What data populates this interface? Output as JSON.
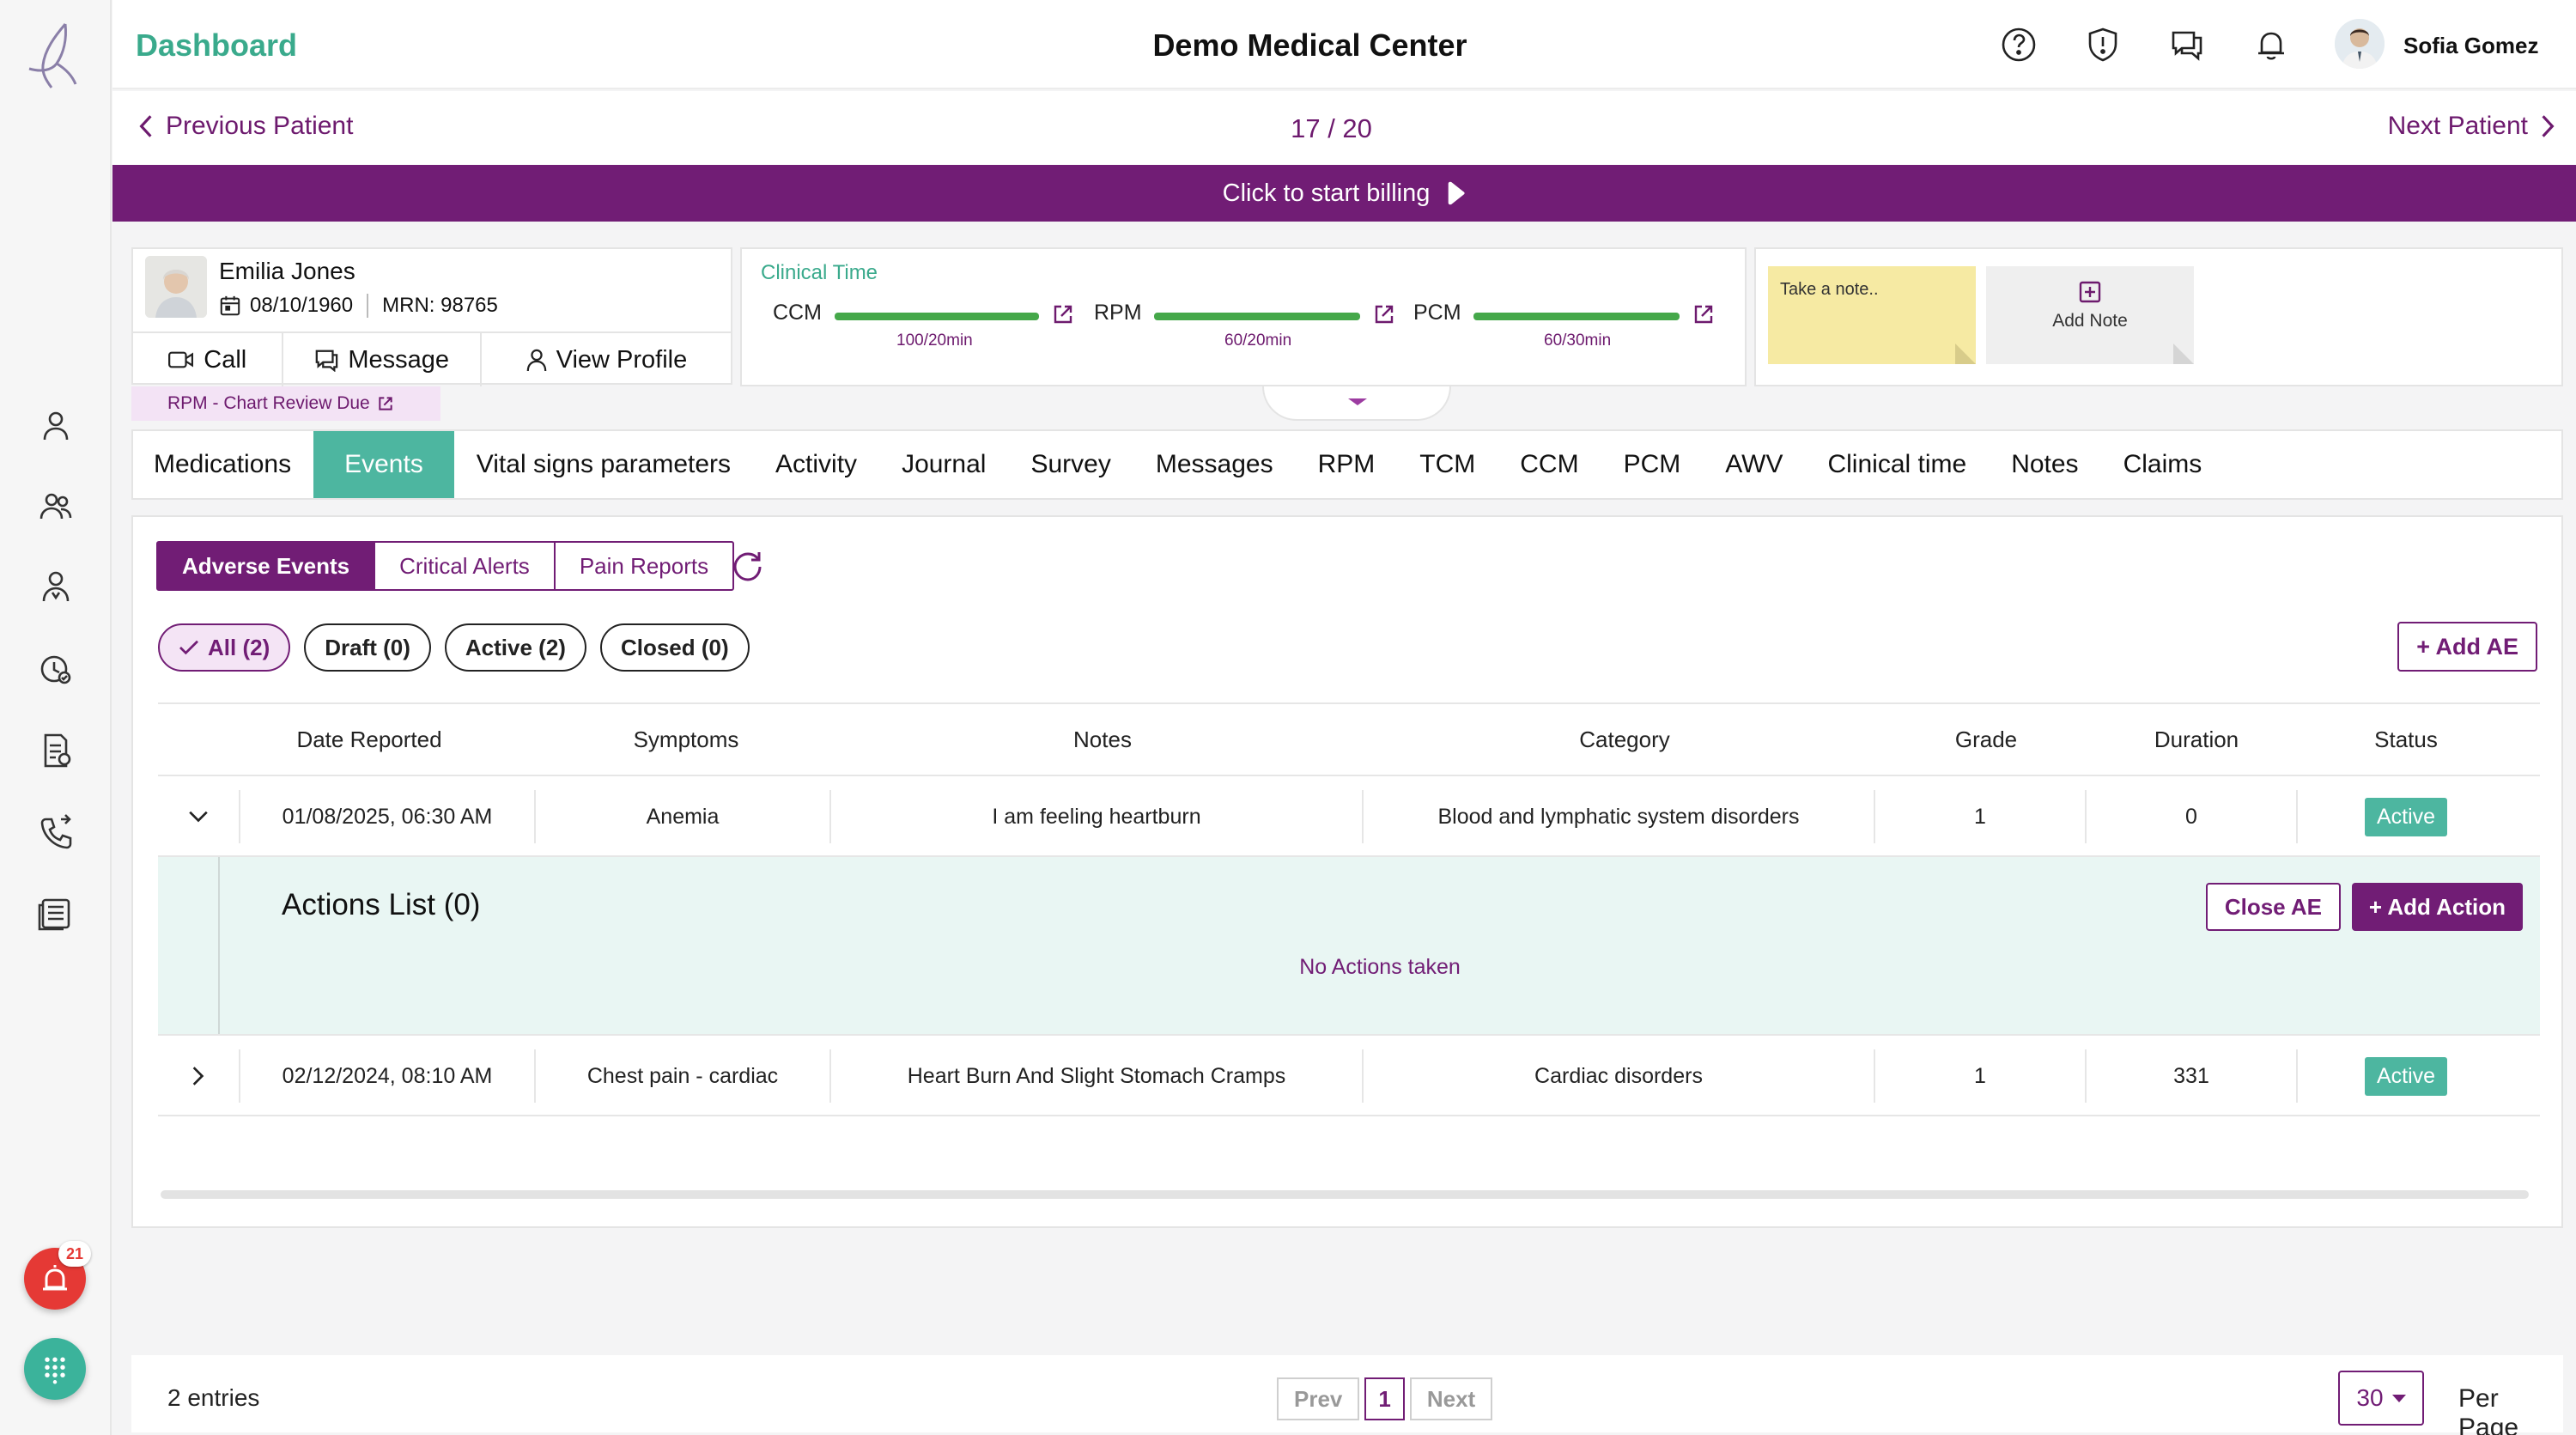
{
  "header": {
    "title": "Dashboard",
    "center_title": "Demo Medical Center",
    "user_name": "Sofia Gomez",
    "icons": [
      "help-icon",
      "shield-alert-icon",
      "chat-icon",
      "bell-icon"
    ]
  },
  "patient_nav": {
    "prev_label": "Previous Patient",
    "position": "17 / 20",
    "next_label": "Next Patient"
  },
  "billing": {
    "label": "Click to start billing"
  },
  "patient": {
    "name": "Emilia Jones",
    "dob": "08/10/1960",
    "mrn": "MRN: 98765",
    "actions": {
      "call": "Call",
      "message": "Message",
      "view_profile": "View Profile"
    },
    "alert": "RPM - Chart Review Due"
  },
  "clinical_time": {
    "title": "Clinical Time",
    "items": [
      {
        "label": "CCM",
        "value": "100/20min",
        "progress": 1.0
      },
      {
        "label": "RPM",
        "value": "60/20min",
        "progress": 1.0
      },
      {
        "label": "PCM",
        "value": "60/30min",
        "progress": 1.0
      }
    ]
  },
  "notes": {
    "placeholder": "Take a note..",
    "add_label": "Add Note"
  },
  "tabs": [
    "Medications",
    "Events",
    "Vital signs parameters",
    "Activity",
    "Journal",
    "Survey",
    "Messages",
    "RPM",
    "TCM",
    "CCM",
    "PCM",
    "AWV",
    "Clinical time",
    "Notes",
    "Claims"
  ],
  "active_tab": "Events",
  "event_types": [
    "Adverse Events",
    "Critical Alerts",
    "Pain Reports"
  ],
  "filters": [
    "All (2)",
    "Draft (0)",
    "Active (2)",
    "Closed (0)"
  ],
  "add_ae_label": "+ Add AE",
  "table": {
    "headers": [
      "Date Reported",
      "Symptoms",
      "Notes",
      "Category",
      "Grade",
      "Duration",
      "Status"
    ],
    "rows": [
      {
        "date": "01/08/2025, 06:30 AM",
        "symptoms": "Anemia",
        "notes": "I am feeling heartburn",
        "category": "Blood and lymphatic system disorders",
        "grade": "1",
        "duration": "0",
        "status": "Active"
      },
      {
        "date": "02/12/2024, 08:10 AM",
        "symptoms": "Chest pain - cardiac",
        "notes": "Heart Burn And Slight Stomach Cramps",
        "category": "Cardiac disorders",
        "grade": "1",
        "duration": "331",
        "status": "Active"
      }
    ],
    "expanded": {
      "title": "Actions List (0)",
      "close_label": "Close AE",
      "add_label": "+ Add Action",
      "empty": "No Actions taken"
    }
  },
  "footer": {
    "entries": "2 entries",
    "prev": "Prev",
    "page": "1",
    "next": "Next",
    "per_page_value": "30",
    "per_page_label": "Per Page"
  },
  "alerts_badge": "21",
  "colors": {
    "brand_purple": "#711d75",
    "accent_teal": "#4db6a0",
    "progress_green": "#45a84a"
  }
}
